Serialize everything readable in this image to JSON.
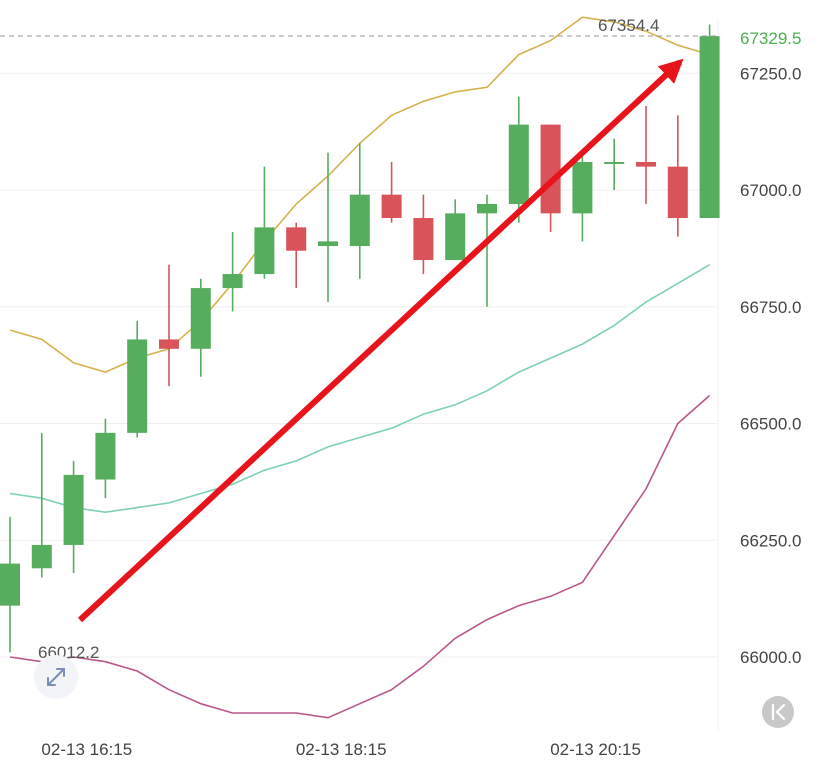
{
  "chart_data": {
    "type": "candlestick",
    "title": "",
    "xlabel": "",
    "ylabel": "",
    "ylim": [
      65820,
      67450
    ],
    "grid": true,
    "y_ticks": [
      "67250.0",
      "67000.0",
      "66750.0",
      "66500.0",
      "66250.0",
      "66000.0"
    ],
    "x_ticks": [
      {
        "label": "02-13 16:15",
        "index": 1
      },
      {
        "label": "02-13 18:15",
        "index": 9
      },
      {
        "label": "02-13 20:15",
        "index": 17
      }
    ],
    "candles": [
      {
        "open": 66110,
        "close": 66200,
        "high": 66300,
        "low": 66010
      },
      {
        "open": 66190,
        "close": 66240,
        "high": 66480,
        "low": 66170
      },
      {
        "open": 66240,
        "close": 66390,
        "high": 66420,
        "low": 66180
      },
      {
        "open": 66380,
        "close": 66480,
        "high": 66510,
        "low": 66340
      },
      {
        "open": 66480,
        "close": 66680,
        "high": 66720,
        "low": 66470
      },
      {
        "open": 66680,
        "close": 66660,
        "high": 66840,
        "low": 66580
      },
      {
        "open": 66660,
        "close": 66790,
        "high": 66810,
        "low": 66600
      },
      {
        "open": 66790,
        "close": 66820,
        "high": 66910,
        "low": 66740
      },
      {
        "open": 66820,
        "close": 66920,
        "high": 67050,
        "low": 66810
      },
      {
        "open": 66920,
        "close": 66870,
        "high": 66930,
        "low": 66790
      },
      {
        "open": 66880,
        "close": 66890,
        "high": 67080,
        "low": 66760
      },
      {
        "open": 66880,
        "close": 66990,
        "high": 67100,
        "low": 66810
      },
      {
        "open": 66990,
        "close": 66940,
        "high": 67060,
        "low": 66930
      },
      {
        "open": 66940,
        "close": 66850,
        "high": 66990,
        "low": 66820
      },
      {
        "open": 66850,
        "close": 66950,
        "high": 66980,
        "low": 66850
      },
      {
        "open": 66950,
        "close": 66970,
        "high": 66990,
        "low": 66750
      },
      {
        "open": 66970,
        "close": 67140,
        "high": 67200,
        "low": 66930
      },
      {
        "open": 67140,
        "close": 66950,
        "high": 67140,
        "low": 66910
      },
      {
        "open": 66950,
        "close": 67060,
        "high": 67080,
        "low": 66890
      },
      {
        "open": 67060,
        "close": 67060,
        "high": 67110,
        "low": 67000
      },
      {
        "open": 67060,
        "close": 67050,
        "high": 67180,
        "low": 66970
      },
      {
        "open": 67050,
        "close": 66940,
        "high": 67160,
        "low": 66900
      },
      {
        "open": 66940,
        "close": 67329.5,
        "high": 67354.4,
        "low": 66940
      }
    ],
    "series": [
      {
        "name": "",
        "color": "#d4b24c",
        "values": [
          66700,
          66680,
          66630,
          66610,
          66640,
          66660,
          66720,
          66800,
          66890,
          66970,
          67030,
          67100,
          67160,
          67190,
          67210,
          67220,
          67290,
          67320,
          67370,
          67360,
          67340,
          67310,
          67290
        ]
      },
      {
        "name": "",
        "color": "#7fd0b2",
        "values": [
          66350,
          66340,
          66320,
          66310,
          66320,
          66330,
          66350,
          66370,
          66400,
          66420,
          66450,
          66470,
          66490,
          66520,
          66540,
          66570,
          66610,
          66640,
          66670,
          66710,
          66760,
          66800,
          66840
        ]
      },
      {
        "name": "",
        "color": "#b9578a",
        "values": [
          66000,
          65990,
          66000,
          65990,
          65970,
          65930,
          65900,
          65880,
          65880,
          65880,
          65870,
          65900,
          65930,
          65980,
          66040,
          66080,
          66110,
          66130,
          66160,
          66260,
          66360,
          66500,
          66560
        ]
      }
    ],
    "annotations": {
      "high_label": "67354.4",
      "low_label": "66012.2",
      "last_price_label": "67329.5",
      "last_price": 67329.5
    },
    "colors": {
      "up": "#57ad5e",
      "down": "#d9535a",
      "arrow": "#e8141b"
    }
  }
}
